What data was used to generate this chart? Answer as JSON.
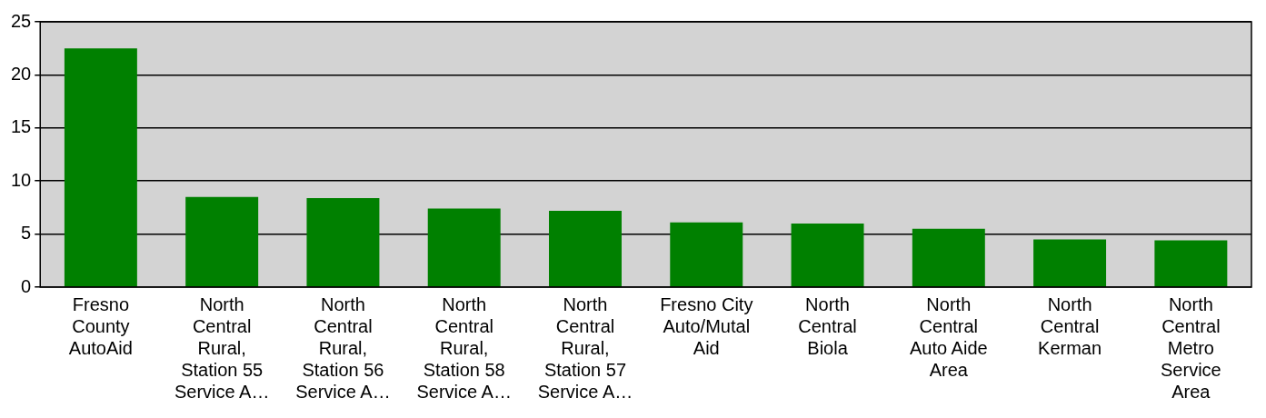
{
  "chart_data": {
    "type": "bar",
    "categories": [
      "Fresno County AutoAid",
      "North Central Rural, Station 55 Service A…",
      "North Central Rural, Station 56 Service A…",
      "North Central Rural, Station 58 Service A…",
      "North Central Rural, Station 57 Service A…",
      "Fresno City Auto/Mutal Aid",
      "North Central Biola",
      "North Central Auto Aide Area",
      "North Central Kerman",
      "North Central Metro Service Area"
    ],
    "values": [
      22.5,
      8.5,
      8.4,
      7.4,
      7.2,
      6.1,
      6.0,
      5.5,
      4.5,
      4.4
    ],
    "color": "#008000",
    "ylim": [
      0,
      25
    ],
    "yticks": [
      0,
      5,
      10,
      15,
      20,
      25
    ],
    "grid": "y",
    "legend": false
  }
}
